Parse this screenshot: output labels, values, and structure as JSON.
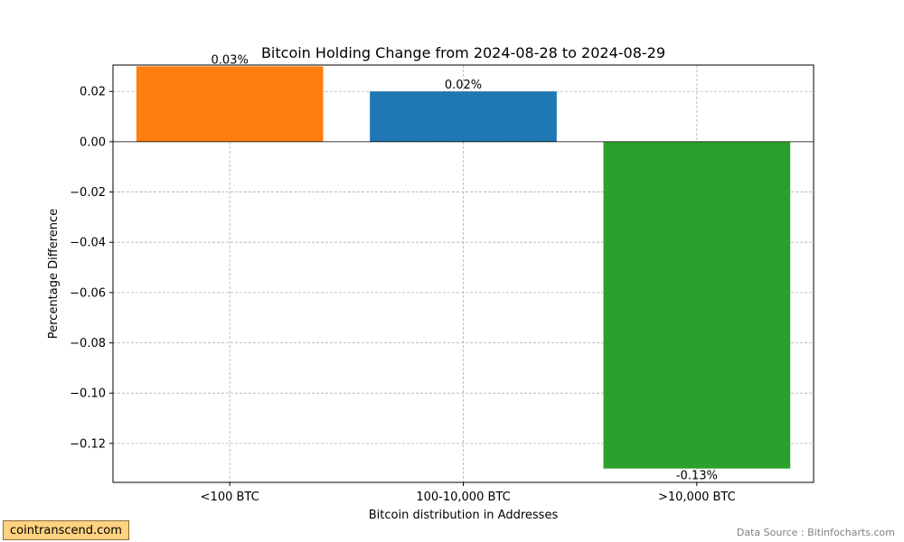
{
  "chart_data": {
    "type": "bar",
    "title": "Bitcoin Holding Change from 2024-08-28 to 2024-08-29",
    "xlabel": "Bitcoin distribution in Addresses",
    "ylabel": "Percentage Difference",
    "categories": [
      "<100 BTC",
      "100-10,000 BTC",
      ">10,000 BTC"
    ],
    "values": [
      0.03,
      0.02,
      -0.13
    ],
    "data_labels": [
      "0.03%",
      "0.02%",
      "-0.13%"
    ],
    "colors": [
      "#ff7f0e",
      "#1f77b4",
      "#2ca02c"
    ],
    "ylim": [
      -0.1355,
      0.0305
    ],
    "yticks": [
      0.02,
      0.0,
      -0.02,
      -0.04,
      -0.06,
      -0.08,
      -0.1,
      -0.12
    ],
    "ytick_labels": [
      "0.02",
      "0.00",
      "−0.02",
      "−0.04",
      "−0.06",
      "−0.08",
      "−0.10",
      "−0.12"
    ],
    "grid": true,
    "zero_line": true
  },
  "brand": {
    "text": "cointranscend.com"
  },
  "source": {
    "text": "Data Source : Bitinfocharts.com"
  }
}
